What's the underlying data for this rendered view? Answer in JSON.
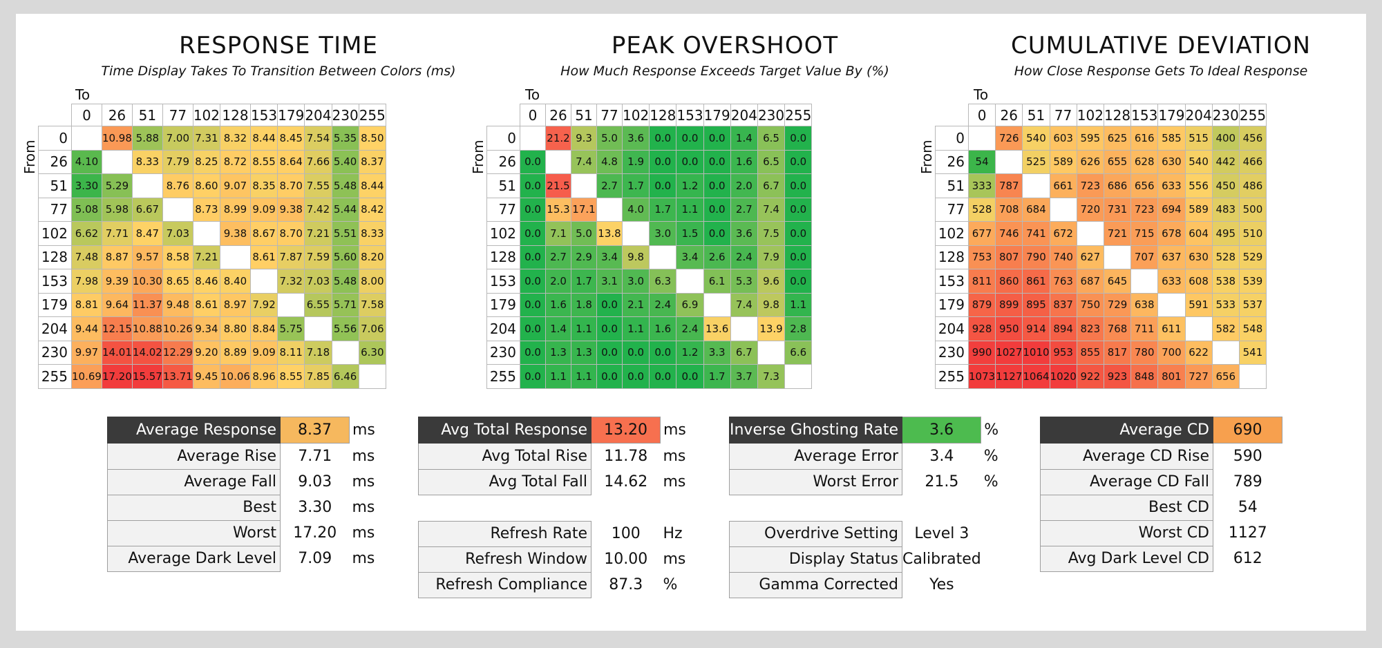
{
  "chart_data": [
    {
      "type": "heatmap",
      "title": "RESPONSE TIME",
      "subtitle": "Time Display Takes To Transition Between Colors (ms)",
      "xlabel": "To",
      "ylabel": "From",
      "levels": [
        0,
        26,
        51,
        77,
        102,
        128,
        153,
        179,
        204,
        230,
        255
      ],
      "values": [
        [
          null,
          "10.98",
          "5.88",
          "7.00",
          "7.31",
          "8.32",
          "8.44",
          "8.45",
          "7.54",
          "5.35",
          "8.50"
        ],
        [
          "4.10",
          null,
          "8.33",
          "7.79",
          "8.25",
          "8.72",
          "8.55",
          "8.64",
          "7.66",
          "5.40",
          "8.37"
        ],
        [
          "3.30",
          "5.29",
          null,
          "8.76",
          "8.60",
          "9.07",
          "8.35",
          "8.70",
          "7.55",
          "5.48",
          "8.44"
        ],
        [
          "5.08",
          "5.98",
          "6.67",
          null,
          "8.73",
          "8.99",
          "9.09",
          "9.38",
          "7.42",
          "5.44",
          "8.42"
        ],
        [
          "6.62",
          "7.71",
          "8.47",
          "7.03",
          null,
          "9.38",
          "8.67",
          "8.70",
          "7.21",
          "5.51",
          "8.33"
        ],
        [
          "7.48",
          "8.87",
          "9.57",
          "8.58",
          "7.21",
          null,
          "8.61",
          "7.87",
          "7.59",
          "5.60",
          "8.20"
        ],
        [
          "7.98",
          "9.39",
          "10.30",
          "8.65",
          "8.46",
          "8.40",
          null,
          "7.32",
          "7.03",
          "5.48",
          "8.00"
        ],
        [
          "8.81",
          "9.64",
          "11.37",
          "9.48",
          "8.61",
          "8.97",
          "7.92",
          null,
          "6.55",
          "5.71",
          "7.58"
        ],
        [
          "9.44",
          "12.15",
          "10.88",
          "10.26",
          "9.34",
          "8.80",
          "8.84",
          "5.75",
          null,
          "5.56",
          "7.06"
        ],
        [
          "9.97",
          "14.01",
          "14.02",
          "12.29",
          "9.20",
          "8.89",
          "9.09",
          "8.11",
          "7.18",
          null,
          "6.30"
        ],
        [
          "10.69",
          "17.20",
          "15.57",
          "13.71",
          "9.45",
          "10.06",
          "8.96",
          "8.55",
          "7.85",
          "6.46",
          null
        ]
      ],
      "color_scale": {
        "min": 3.3,
        "mid": 8.5,
        "max": 15.0,
        "low_color": "#3cb54a",
        "mid_color": "#ffd266",
        "high_color": "#f23c3c"
      }
    },
    {
      "type": "heatmap",
      "title": "PEAK OVERSHOOT",
      "subtitle": "How Much Response Exceeds Target Value By (%)",
      "xlabel": "To",
      "ylabel": "From",
      "levels": [
        0,
        26,
        51,
        77,
        102,
        128,
        153,
        179,
        204,
        230,
        255
      ],
      "values": [
        [
          null,
          "21.2",
          "9.3",
          "5.0",
          "3.6",
          "0.0",
          "0.0",
          "0.0",
          "1.4",
          "6.5",
          "0.0"
        ],
        [
          "0.0",
          null,
          "7.4",
          "4.8",
          "1.9",
          "0.0",
          "0.0",
          "0.0",
          "1.6",
          "6.5",
          "0.0"
        ],
        [
          "0.0",
          "21.5",
          null,
          "2.7",
          "1.7",
          "0.0",
          "1.2",
          "0.0",
          "2.0",
          "6.7",
          "0.0"
        ],
        [
          "0.0",
          "15.3",
          "17.1",
          null,
          "4.0",
          "1.7",
          "1.1",
          "0.0",
          "2.7",
          "7.4",
          "0.0"
        ],
        [
          "0.0",
          "7.1",
          "5.0",
          "13.8",
          null,
          "3.0",
          "1.5",
          "0.0",
          "3.6",
          "7.5",
          "0.0"
        ],
        [
          "0.0",
          "2.7",
          "2.9",
          "3.4",
          "9.8",
          null,
          "3.4",
          "2.6",
          "2.4",
          "7.9",
          "0.0"
        ],
        [
          "0.0",
          "2.0",
          "1.7",
          "3.1",
          "3.0",
          "6.3",
          null,
          "6.1",
          "5.3",
          "9.6",
          "0.0"
        ],
        [
          "0.0",
          "1.6",
          "1.8",
          "0.0",
          "2.1",
          "2.4",
          "6.9",
          null,
          "7.4",
          "9.8",
          "1.1"
        ],
        [
          "0.0",
          "1.4",
          "1.1",
          "0.0",
          "1.1",
          "1.6",
          "2.4",
          "13.6",
          null,
          "13.9",
          "2.8"
        ],
        [
          "0.0",
          "1.3",
          "1.3",
          "0.0",
          "0.0",
          "0.0",
          "1.2",
          "3.3",
          "6.7",
          null,
          "6.6"
        ],
        [
          "0.0",
          "1.1",
          "1.1",
          "0.0",
          "0.0",
          "0.0",
          "0.0",
          "1.7",
          "3.7",
          "7.3",
          null
        ]
      ],
      "color_scale": {
        "min": 0,
        "mid": 14,
        "max": 22,
        "low_color": "#22b24c",
        "mid_color": "#ffd266",
        "high_color": "#f5554a"
      }
    },
    {
      "type": "heatmap",
      "title": "CUMULATIVE DEVIATION",
      "subtitle": "How Close Response Gets To Ideal Response",
      "xlabel": "To",
      "ylabel": "From",
      "levels": [
        0,
        26,
        51,
        77,
        102,
        128,
        153,
        179,
        204,
        230,
        255
      ],
      "values": [
        [
          null,
          "726",
          "540",
          "603",
          "595",
          "625",
          "616",
          "585",
          "515",
          "400",
          "456"
        ],
        [
          "54",
          null,
          "525",
          "589",
          "626",
          "655",
          "628",
          "630",
          "540",
          "442",
          "466"
        ],
        [
          "333",
          "787",
          null,
          "661",
          "723",
          "686",
          "656",
          "633",
          "556",
          "450",
          "486"
        ],
        [
          "528",
          "708",
          "684",
          null,
          "720",
          "731",
          "723",
          "694",
          "589",
          "483",
          "500"
        ],
        [
          "677",
          "746",
          "741",
          "672",
          null,
          "721",
          "715",
          "678",
          "604",
          "495",
          "510"
        ],
        [
          "753",
          "807",
          "790",
          "740",
          "627",
          null,
          "707",
          "637",
          "630",
          "528",
          "529"
        ],
        [
          "811",
          "860",
          "861",
          "763",
          "687",
          "645",
          null,
          "633",
          "608",
          "538",
          "539"
        ],
        [
          "879",
          "899",
          "895",
          "837",
          "750",
          "729",
          "638",
          null,
          "591",
          "533",
          "537"
        ],
        [
          "928",
          "950",
          "914",
          "894",
          "823",
          "768",
          "711",
          "611",
          null,
          "582",
          "548"
        ],
        [
          "990",
          "1027",
          "1010",
          "953",
          "855",
          "817",
          "780",
          "700",
          "622",
          null,
          "541"
        ],
        [
          "1073",
          "1127",
          "1064",
          "1020",
          "922",
          "923",
          "848",
          "801",
          "727",
          "656",
          null
        ]
      ],
      "color_scale": {
        "min": 54,
        "mid": 560,
        "max": 1000,
        "low_color": "#3cb54a",
        "mid_color": "#ffd266",
        "high_color": "#f23c3c"
      }
    }
  ],
  "stats": [
    {
      "rows": [
        {
          "label": "Average Response",
          "value": "8.37",
          "unit": "ms",
          "head": true,
          "color": "#f6b85e"
        },
        {
          "label": "Average Rise",
          "value": "7.71",
          "unit": "ms"
        },
        {
          "label": "Average Fall",
          "value": "9.03",
          "unit": "ms"
        },
        {
          "label": "Best",
          "value": "3.30",
          "unit": "ms"
        },
        {
          "label": "Worst",
          "value": "17.20",
          "unit": "ms"
        },
        {
          "label": "Average Dark Level",
          "value": "7.09",
          "unit": "ms"
        }
      ]
    },
    {
      "rows": [
        {
          "label": "Avg Total Response",
          "value": "13.20",
          "unit": "ms",
          "head": true,
          "color": "#f7704f"
        },
        {
          "label": "Avg Total Rise",
          "value": "11.78",
          "unit": "ms"
        },
        {
          "label": "Avg Total Fall",
          "value": "14.62",
          "unit": "ms"
        },
        {
          "gap": true
        },
        {
          "label": "Refresh Rate",
          "value": "100",
          "unit": "Hz"
        },
        {
          "label": "Refresh Window",
          "value": "10.00",
          "unit": "ms"
        },
        {
          "label": "Refresh Compliance",
          "value": "87.3",
          "unit": "%"
        }
      ]
    },
    {
      "rows": [
        {
          "label": "Inverse Ghosting Rate",
          "value": "3.6",
          "unit": "%",
          "head": true,
          "color": "#4dbb4f"
        },
        {
          "label": "Average Error",
          "value": "3.4",
          "unit": "%"
        },
        {
          "label": "Worst Error",
          "value": "21.5",
          "unit": "%"
        },
        {
          "gap": true
        },
        {
          "label": "Overdrive Setting",
          "value": "Level 3",
          "unit": ""
        },
        {
          "label": "Display Status",
          "value": "Calibrated",
          "unit": ""
        },
        {
          "label": "Gamma Corrected",
          "value": "Yes",
          "unit": ""
        }
      ]
    },
    {
      "rows": [
        {
          "label": "Average CD",
          "value": "690",
          "unit": "",
          "head": true,
          "color": "#f7a04e"
        },
        {
          "label": "Average CD Rise",
          "value": "590",
          "unit": ""
        },
        {
          "label": "Average CD Fall",
          "value": "789",
          "unit": ""
        },
        {
          "label": "Best CD",
          "value": "54",
          "unit": ""
        },
        {
          "label": "Worst CD",
          "value": "1127",
          "unit": ""
        },
        {
          "label": "Avg Dark Level CD",
          "value": "612",
          "unit": ""
        }
      ]
    }
  ]
}
